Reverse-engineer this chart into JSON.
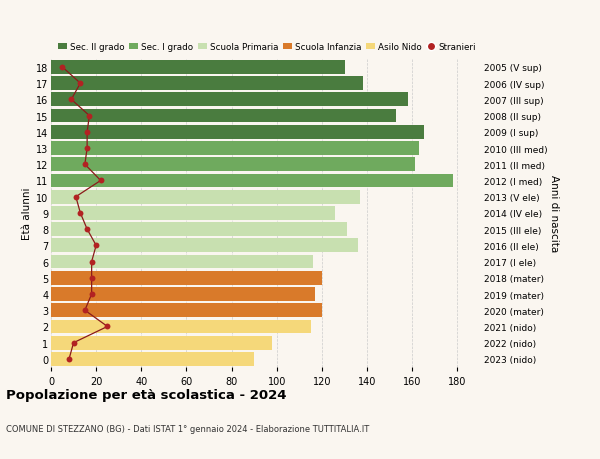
{
  "ages": [
    18,
    17,
    16,
    15,
    14,
    13,
    12,
    11,
    10,
    9,
    8,
    7,
    6,
    5,
    4,
    3,
    2,
    1,
    0
  ],
  "years": [
    "2005 (V sup)",
    "2006 (IV sup)",
    "2007 (III sup)",
    "2008 (II sup)",
    "2009 (I sup)",
    "2010 (III med)",
    "2011 (II med)",
    "2012 (I med)",
    "2013 (V ele)",
    "2014 (IV ele)",
    "2015 (III ele)",
    "2016 (II ele)",
    "2017 (I ele)",
    "2018 (mater)",
    "2019 (mater)",
    "2020 (mater)",
    "2021 (nido)",
    "2022 (nido)",
    "2023 (nido)"
  ],
  "bar_values": [
    130,
    138,
    158,
    153,
    165,
    163,
    161,
    178,
    137,
    126,
    131,
    136,
    116,
    120,
    117,
    120,
    115,
    98,
    90
  ],
  "stranieri_values": [
    5,
    13,
    9,
    17,
    16,
    16,
    15,
    22,
    11,
    13,
    16,
    20,
    18,
    18,
    18,
    15,
    25,
    10,
    8
  ],
  "bar_colors": [
    "#4a7c3f",
    "#4a7c3f",
    "#4a7c3f",
    "#4a7c3f",
    "#4a7c3f",
    "#6faa5e",
    "#6faa5e",
    "#6faa5e",
    "#c8e0b0",
    "#c8e0b0",
    "#c8e0b0",
    "#c8e0b0",
    "#c8e0b0",
    "#d97a2a",
    "#d97a2a",
    "#d97a2a",
    "#f5d87a",
    "#f5d87a",
    "#f5d87a"
  ],
  "legend_labels": [
    "Sec. II grado",
    "Sec. I grado",
    "Scuola Primaria",
    "Scuola Infanzia",
    "Asilo Nido",
    "Stranieri"
  ],
  "legend_colors": [
    "#4a7c3f",
    "#6faa5e",
    "#c8e0b0",
    "#d97a2a",
    "#f5d87a",
    "#b22222"
  ],
  "title": "Popolazione per età scolastica - 2024",
  "subtitle": "COMUNE DI STEZZANO (BG) - Dati ISTAT 1° gennaio 2024 - Elaborazione TUTTITALIA.IT",
  "ylabel": "Età alunni",
  "right_ylabel": "Anni di nascita",
  "xlim": [
    0,
    190
  ],
  "xticks": [
    0,
    20,
    40,
    60,
    80,
    100,
    120,
    140,
    160,
    180
  ],
  "background_color": "#faf6f0",
  "grid_color": "#cccccc",
  "stranieri_line_color": "#8b1a1a",
  "stranieri_dot_color": "#b22222"
}
